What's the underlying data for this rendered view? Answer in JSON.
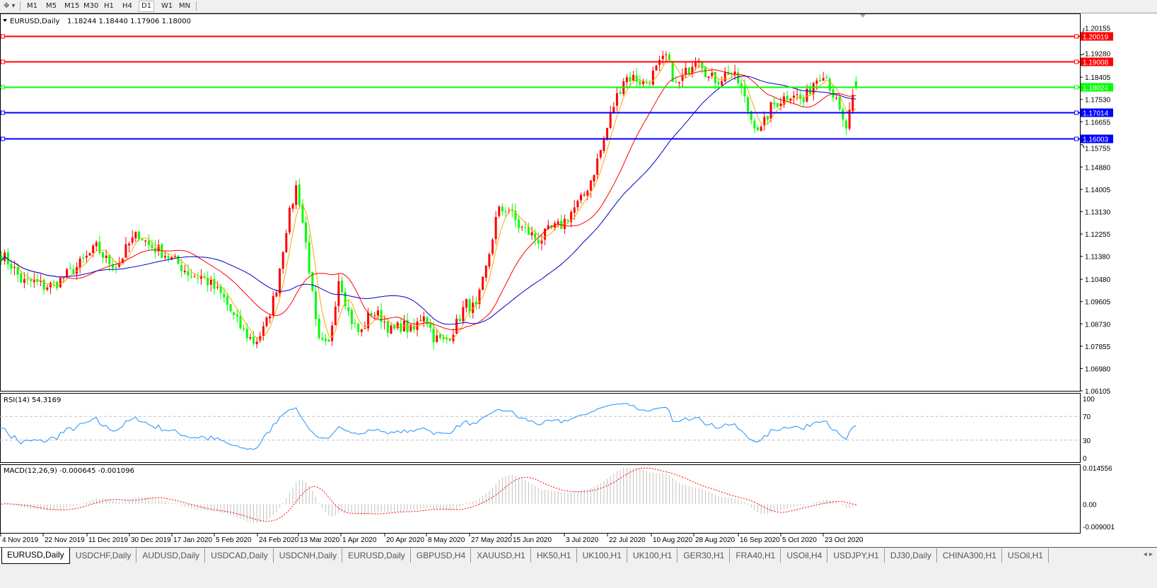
{
  "toolbar": {
    "timeframes": [
      "M1",
      "M5",
      "M15",
      "M30",
      "H1",
      "H4",
      "D1",
      "W1",
      "MN"
    ],
    "active_timeframe": "D1"
  },
  "chart": {
    "header": "EURUSD,Daily",
    "ohlc": "1.18244 1.18440 1.17906 1.18000",
    "colors": {
      "bull": "#ff0000",
      "bear": "#00ff00",
      "ma_fast": "#ffa500",
      "ma_mid": "#ff0000",
      "ma_slow": "#0000cd",
      "rsi": "#1e90ff",
      "macd_hist": "#c0c0c0",
      "macd_signal": "#ff0000"
    },
    "price_axis": [
      "1.20155",
      "1.19280",
      "1.18405",
      "1.17530",
      "1.16655",
      "1.15755",
      "1.14880",
      "1.14005",
      "1.13130",
      "1.12255",
      "1.11380",
      "1.10480",
      "1.09605",
      "1.08730",
      "1.07855",
      "1.06980",
      "1.06105"
    ],
    "hlines": [
      {
        "price": "1.20019",
        "color": "#ff0000"
      },
      {
        "price": "1.19008",
        "color": "#ff0000"
      },
      {
        "price": "1.18024",
        "color": "#00ff00"
      },
      {
        "price": "1.17014",
        "color": "#0000ff"
      },
      {
        "price": "1.16003",
        "color": "#0000ff"
      }
    ],
    "date_axis": [
      "4 Nov 2019",
      "22 Nov 2019",
      "11 Dec 2019",
      "30 Dec 2019",
      "17 Jan 2020",
      "5 Feb 2020",
      "24 Feb 2020",
      "13 Mar 2020",
      "1 Apr 2020",
      "20 Apr 2020",
      "8 May 2020",
      "27 May 2020",
      "15 Jun 2020",
      "3 Jul 2020",
      "22 Jul 2020",
      "10 Aug 2020",
      "28 Aug 2020",
      "16 Sep 2020",
      "5 Oct 2020",
      "23 Oct 2020"
    ]
  },
  "rsi": {
    "label": "RSI(14) 54.3169",
    "axis": [
      "100",
      "70",
      "30",
      "0"
    ]
  },
  "macd": {
    "label": "MACD(12,26,9) -0.000645 -0.001096",
    "axis": [
      "0.014556",
      "0.00",
      "-0.009001"
    ]
  },
  "chart_data": {
    "type": "candlestick",
    "symbol": "EURUSD",
    "timeframe": "Daily",
    "ylim": [
      1.06105,
      1.20155
    ],
    "x_range": [
      "4 Nov 2019",
      "23 Oct 2020"
    ],
    "approx_close_path": [
      1.1146,
      1.11,
      1.1035,
      1.104,
      1.102,
      1.1025,
      1.106,
      1.109,
      1.113,
      1.1173,
      1.112,
      1.11,
      1.118,
      1.1229,
      1.118,
      1.116,
      1.1132,
      1.11,
      1.1063,
      1.106,
      1.102,
      1.0979,
      1.09,
      1.0841,
      1.0799,
      1.086,
      1.1,
      1.125,
      1.1422,
      1.115,
      1.08,
      1.078,
      1.1063,
      1.09,
      1.083,
      1.092,
      1.09,
      1.0841,
      1.087,
      1.084,
      1.092,
      1.082,
      1.08,
      1.086,
      1.0952,
      1.093,
      1.11,
      1.131,
      1.133,
      1.1257,
      1.1229,
      1.12,
      1.1243,
      1.1257,
      1.1312,
      1.136,
      1.1451,
      1.158,
      1.1727,
      1.1838,
      1.1838,
      1.1811,
      1.1866,
      1.1921,
      1.18,
      1.1866,
      1.1935,
      1.1838,
      1.183,
      1.1866,
      1.1811,
      1.168,
      1.1631,
      1.1727,
      1.1755,
      1.1783,
      1.1741,
      1.1825,
      1.1866,
      1.1755,
      1.1631,
      1.18
    ],
    "last_ohlc": {
      "open": 1.18244,
      "high": 1.1844,
      "low": 1.17906,
      "close": 1.18
    },
    "rsi_levels": [
      30,
      70
    ],
    "rsi_last": 54.3169,
    "macd_last": {
      "main": -0.000645,
      "signal": -0.001096
    },
    "macd_ylim": [
      -0.009001,
      0.014556
    ]
  },
  "tabs": [
    "EURUSD,Daily",
    "USDCHF,Daily",
    "AUDUSD,Daily",
    "USDCAD,Daily",
    "USDCNH,Daily",
    "EURUSD,Daily",
    "GBPUSD,H4",
    "XAUUSD,H1",
    "HK50,H1",
    "UK100,H1",
    "UK100,H1",
    "GER30,H1",
    "FRA40,H1",
    "USOil,H4",
    "USDJPY,H1",
    "DJ30,Daily",
    "CHINA300,H1",
    "USOil,H1"
  ],
  "active_tab": 0,
  "tab_nav": {
    "prev": "◂",
    "next": "▸"
  }
}
